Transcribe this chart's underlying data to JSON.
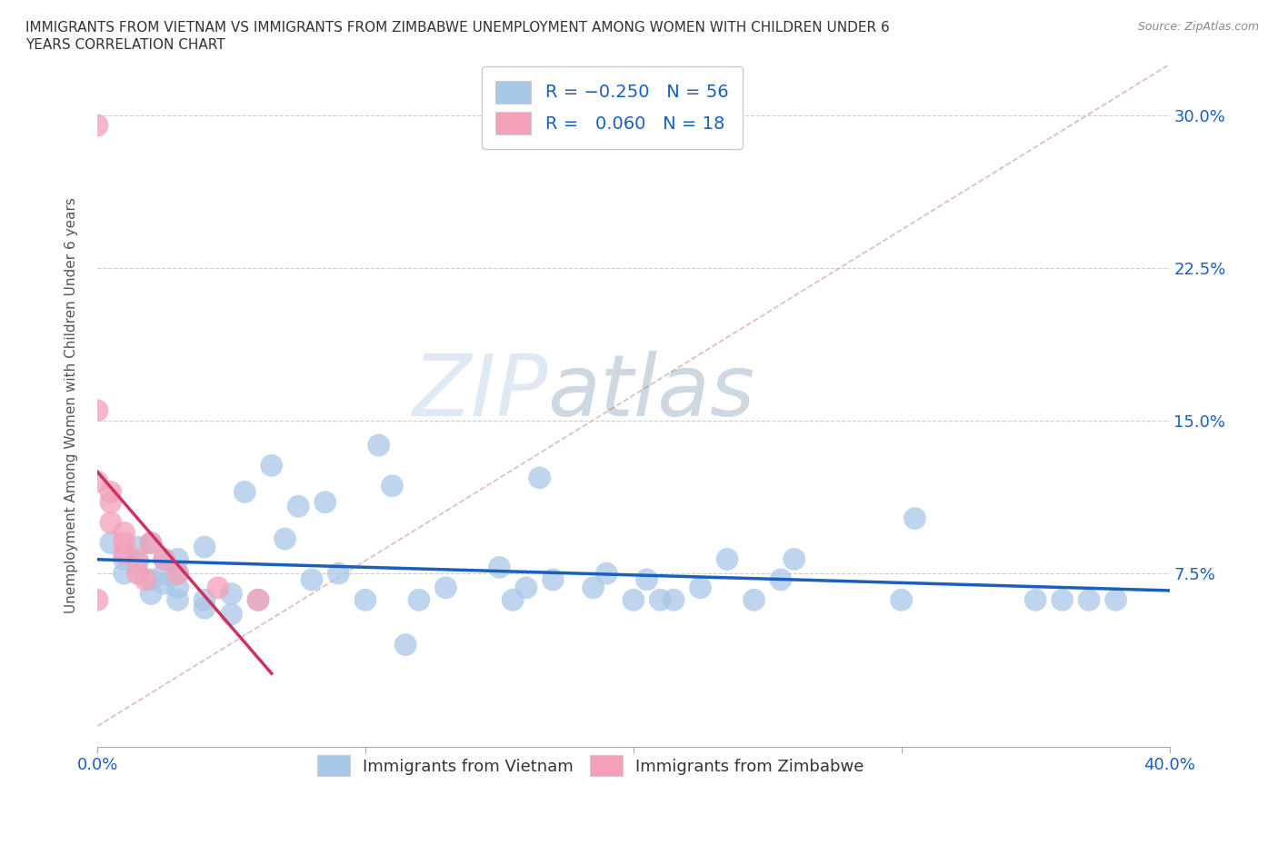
{
  "title_line1": "IMMIGRANTS FROM VIETNAM VS IMMIGRANTS FROM ZIMBABWE UNEMPLOYMENT AMONG WOMEN WITH CHILDREN UNDER 6",
  "title_line2": "YEARS CORRELATION CHART",
  "source": "Source: ZipAtlas.com",
  "ylabel": "Unemployment Among Women with Children Under 6 years",
  "xlim": [
    0.0,
    0.4
  ],
  "ylim": [
    -0.01,
    0.325
  ],
  "yticks_right": [
    0.075,
    0.15,
    0.225,
    0.3
  ],
  "ytick_labels_right": [
    "7.5%",
    "15.0%",
    "22.5%",
    "30.0%"
  ],
  "color_vietnam": "#a8c8e8",
  "color_zimbabwe": "#f4a0b8",
  "color_trendline_vietnam": "#1a5fbd",
  "color_trendline_zimbabwe": "#d03060",
  "color_refline": "#e0b0b8",
  "watermark_zip": "ZIP",
  "watermark_atlas": "atlas",
  "vietnam_x": [
    0.005,
    0.01,
    0.01,
    0.015,
    0.015,
    0.02,
    0.02,
    0.02,
    0.025,
    0.025,
    0.025,
    0.03,
    0.03,
    0.03,
    0.03,
    0.04,
    0.04,
    0.04,
    0.05,
    0.05,
    0.055,
    0.06,
    0.065,
    0.07,
    0.075,
    0.08,
    0.085,
    0.09,
    0.1,
    0.105,
    0.11,
    0.115,
    0.12,
    0.13,
    0.15,
    0.155,
    0.16,
    0.165,
    0.17,
    0.185,
    0.19,
    0.2,
    0.205,
    0.21,
    0.215,
    0.225,
    0.235,
    0.245,
    0.255,
    0.26,
    0.3,
    0.305,
    0.35,
    0.36,
    0.37,
    0.38
  ],
  "vietnam_y": [
    0.09,
    0.075,
    0.082,
    0.08,
    0.088,
    0.065,
    0.072,
    0.09,
    0.07,
    0.075,
    0.082,
    0.062,
    0.068,
    0.075,
    0.082,
    0.058,
    0.062,
    0.088,
    0.055,
    0.065,
    0.115,
    0.062,
    0.128,
    0.092,
    0.108,
    0.072,
    0.11,
    0.075,
    0.062,
    0.138,
    0.118,
    0.04,
    0.062,
    0.068,
    0.078,
    0.062,
    0.068,
    0.122,
    0.072,
    0.068,
    0.075,
    0.062,
    0.072,
    0.062,
    0.062,
    0.068,
    0.082,
    0.062,
    0.072,
    0.082,
    0.062,
    0.102,
    0.062,
    0.062,
    0.062,
    0.062
  ],
  "zimbabwe_x": [
    0.0,
    0.0,
    0.0,
    0.0,
    0.005,
    0.005,
    0.005,
    0.01,
    0.01,
    0.01,
    0.015,
    0.015,
    0.018,
    0.02,
    0.025,
    0.03,
    0.045,
    0.06
  ],
  "zimbabwe_y": [
    0.295,
    0.155,
    0.12,
    0.062,
    0.115,
    0.11,
    0.1,
    0.095,
    0.09,
    0.085,
    0.082,
    0.075,
    0.072,
    0.09,
    0.082,
    0.075,
    0.068,
    0.062
  ]
}
